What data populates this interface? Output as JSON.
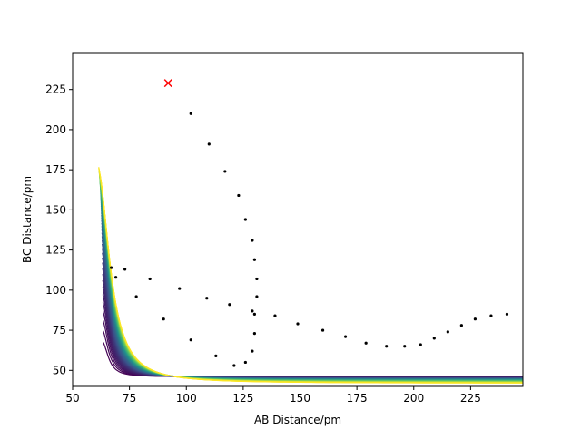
{
  "chart_data": {
    "type": "contour",
    "title": "",
    "xlabel": "AB Distance/pm",
    "ylabel": "BC Distance/pm",
    "xlim": [
      50,
      248
    ],
    "ylim": [
      40,
      248
    ],
    "xticks": [
      50,
      75,
      100,
      125,
      150,
      175,
      200,
      225
    ],
    "yticks": [
      50,
      75,
      100,
      125,
      150,
      175,
      200,
      225
    ],
    "grid": false,
    "colormap": [
      "#440154",
      "#3b528b",
      "#21918c",
      "#5ec962",
      "#fde725"
    ],
    "contours": {
      "description_of_field": "potential energy surface with valley along the axes",
      "count": 60
    },
    "trajectory_points": [
      {
        "x": 67,
        "y": 114
      },
      {
        "x": 69,
        "y": 108
      },
      {
        "x": 73,
        "y": 113
      },
      {
        "x": 78,
        "y": 96
      },
      {
        "x": 84,
        "y": 107
      },
      {
        "x": 90,
        "y": 82
      },
      {
        "x": 97,
        "y": 101
      },
      {
        "x": 102,
        "y": 69
      },
      {
        "x": 109,
        "y": 95
      },
      {
        "x": 113,
        "y": 59
      },
      {
        "x": 119,
        "y": 91
      },
      {
        "x": 121,
        "y": 53
      },
      {
        "x": 126,
        "y": 55
      },
      {
        "x": 129,
        "y": 87
      },
      {
        "x": 129,
        "y": 62
      },
      {
        "x": 130,
        "y": 73
      },
      {
        "x": 130,
        "y": 85
      },
      {
        "x": 131,
        "y": 96
      },
      {
        "x": 131,
        "y": 107
      },
      {
        "x": 130,
        "y": 119
      },
      {
        "x": 129,
        "y": 131
      },
      {
        "x": 126,
        "y": 144
      },
      {
        "x": 123,
        "y": 159
      },
      {
        "x": 117,
        "y": 174
      },
      {
        "x": 110,
        "y": 191
      },
      {
        "x": 102,
        "y": 210
      },
      {
        "x": 139,
        "y": 84
      },
      {
        "x": 149,
        "y": 79
      },
      {
        "x": 160,
        "y": 75
      },
      {
        "x": 170,
        "y": 71
      },
      {
        "x": 179,
        "y": 67
      },
      {
        "x": 188,
        "y": 65
      },
      {
        "x": 196,
        "y": 65
      },
      {
        "x": 203,
        "y": 66
      },
      {
        "x": 209,
        "y": 70
      },
      {
        "x": 215,
        "y": 74
      },
      {
        "x": 221,
        "y": 78
      },
      {
        "x": 227,
        "y": 82
      },
      {
        "x": 234,
        "y": 84
      },
      {
        "x": 241,
        "y": 85
      }
    ],
    "start_marker": {
      "x": 92,
      "y": 229,
      "symbol": "x",
      "color": "#ff0000"
    }
  }
}
